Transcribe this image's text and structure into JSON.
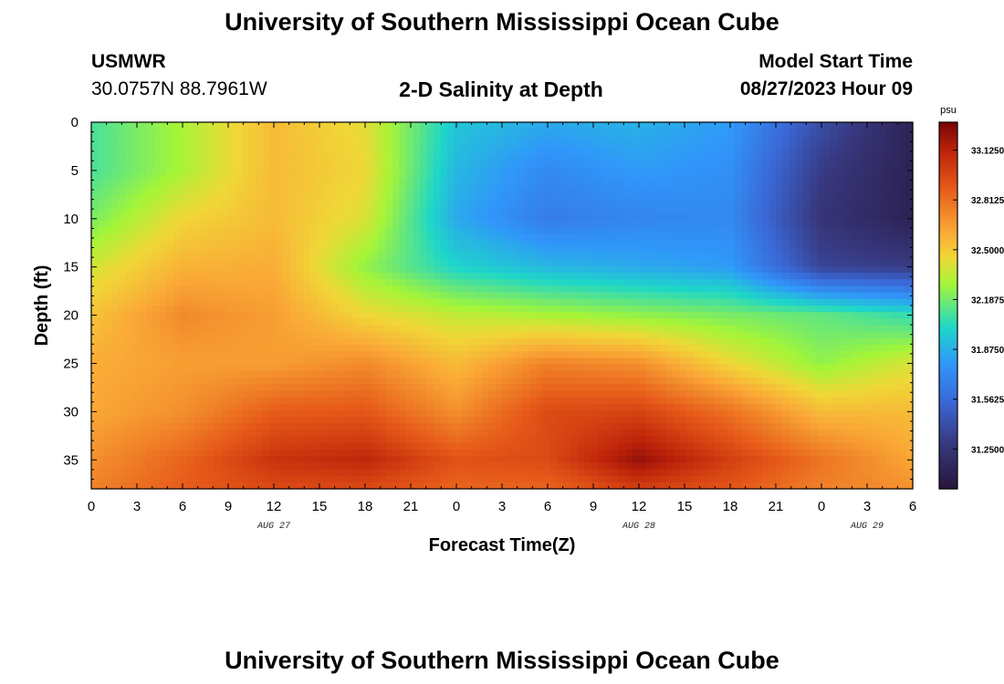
{
  "page": {
    "title": "University of Southern Mississippi Ocean Cube",
    "station": "USMWR",
    "coords": "30.0757N  88.7961W",
    "subtitle": "2-D Salinity at Depth",
    "model_label": "Model Start Time",
    "model_time": "08/27/2023 Hour 09",
    "bottom_title": "University of Southern Mississippi Ocean Cube"
  },
  "chart_data": {
    "type": "heatmap",
    "xlabel": "Forecast Time(Z)",
    "ylabel": "Depth (ft)",
    "x_ticks": [
      "0",
      "3",
      "6",
      "9",
      "12",
      "15",
      "18",
      "21",
      "0",
      "3",
      "6",
      "9",
      "12",
      "15",
      "18",
      "21",
      "0",
      "3",
      "6"
    ],
    "x_dates": [
      {
        "label": "AUG 27",
        "tick_index": 12
      },
      {
        "label": "AUG 28",
        "tick_index": 36
      },
      {
        "label": "AUG 29",
        "tick_index": 51
      }
    ],
    "xlim": [
      0,
      54
    ],
    "y_ticks": [
      0,
      5,
      10,
      15,
      20,
      25,
      30,
      35
    ],
    "ylim": [
      0,
      38
    ],
    "y_inverted": true,
    "colorbar": {
      "unit": "psu",
      "range": [
        31.0,
        33.3
      ],
      "ticks": [
        "33.1250",
        "32.8125",
        "32.5000",
        "32.1875",
        "31.8750",
        "31.5625",
        "31.2500"
      ],
      "tick_values": [
        33.125,
        32.8125,
        32.5,
        32.1875,
        31.875,
        31.5625,
        31.25
      ]
    },
    "grid": {
      "times": [
        0,
        6,
        12,
        18,
        24,
        30,
        36,
        42,
        48,
        54
      ],
      "depths": [
        0,
        5,
        10,
        15,
        20,
        25,
        30,
        35,
        38
      ],
      "salinity_psu": [
        [
          32.1,
          32.3,
          32.55,
          32.42,
          31.95,
          31.85,
          31.88,
          31.8,
          31.4,
          31.1
        ],
        [
          32.1,
          32.3,
          32.55,
          32.45,
          31.9,
          31.72,
          31.8,
          31.75,
          31.3,
          31.1
        ],
        [
          32.2,
          32.45,
          32.55,
          32.4,
          31.85,
          31.65,
          31.7,
          31.72,
          31.25,
          31.1
        ],
        [
          32.38,
          32.58,
          32.6,
          32.25,
          32.0,
          31.9,
          31.85,
          31.8,
          31.35,
          31.3
        ],
        [
          32.52,
          32.72,
          32.65,
          32.45,
          32.35,
          32.3,
          32.25,
          32.2,
          32.15,
          32.05
        ],
        [
          32.6,
          32.65,
          32.65,
          32.72,
          32.55,
          32.75,
          32.7,
          32.45,
          32.25,
          32.4
        ],
        [
          32.62,
          32.7,
          32.88,
          32.9,
          32.7,
          32.95,
          32.98,
          32.8,
          32.55,
          32.55
        ],
        [
          32.7,
          32.85,
          33.05,
          33.1,
          32.92,
          32.95,
          33.22,
          33.0,
          32.8,
          32.62
        ],
        [
          32.75,
          32.88,
          32.95,
          32.95,
          32.85,
          32.85,
          33.0,
          32.9,
          32.75,
          32.7
        ]
      ]
    }
  }
}
